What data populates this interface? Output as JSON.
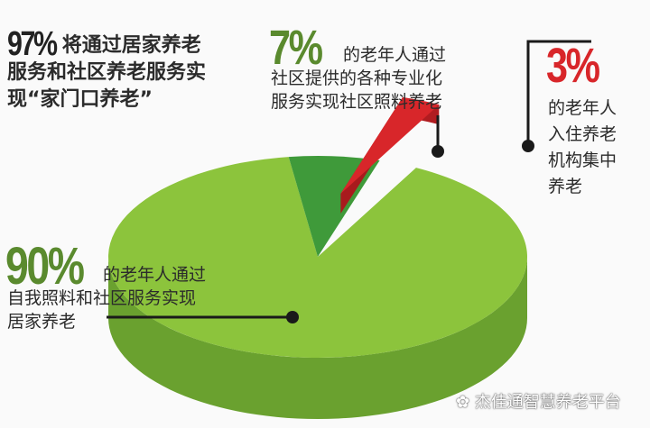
{
  "chart_data": {
    "type": "pie",
    "style": "3d-exploded",
    "slices": [
      {
        "label": "90%",
        "value": 90,
        "color": "#8cc43c",
        "text": [
          "的老年人通过",
          "自我照料和社区服务实现",
          "居家养老"
        ]
      },
      {
        "label": "7%",
        "value": 7,
        "color": "#3f9a3a",
        "text": [
          "的老年人通过",
          "社区提供的各种专业化",
          "服务实现社区照料养老"
        ]
      },
      {
        "label": "3%",
        "value": 3,
        "color": "#d8262a",
        "exploded": true,
        "text": [
          "的老年人",
          "入住养老",
          "机构集中",
          "养老"
        ]
      }
    ],
    "annotation": {
      "label": "97%",
      "text": [
        "将通过居家养老",
        "服务和社区养老服务实",
        "现“家门口养老”"
      ]
    }
  },
  "colors": {
    "label_90": "#5a8a2e",
    "label_7": "#5a8a2e",
    "label_3": "#d8262a",
    "label_97": "#222222"
  },
  "watermark": {
    "icon": "wechat-icon",
    "text": "杰佳通智慧养老平台"
  }
}
